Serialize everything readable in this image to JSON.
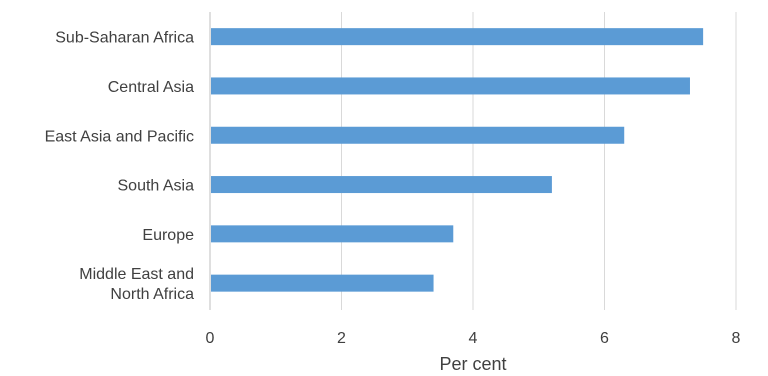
{
  "chart_data": {
    "type": "bar",
    "orientation": "horizontal",
    "categories": [
      "Sub-Saharan Africa",
      "Central Asia",
      "East Asia and Pacific",
      "South Asia",
      "Europe",
      "Middle East and North Africa"
    ],
    "category_label_lines": [
      [
        "Sub-Saharan Africa"
      ],
      [
        "Central Asia"
      ],
      [
        "East Asia and Pacific"
      ],
      [
        "South Asia"
      ],
      [
        "Europe"
      ],
      [
        "Middle East and",
        "North Africa"
      ]
    ],
    "values": [
      7.5,
      7.3,
      6.3,
      5.2,
      3.7,
      3.4
    ],
    "xlabel": "Per cent",
    "ylabel": "",
    "title": "",
    "xlim": [
      0,
      8
    ],
    "xticks": [
      0,
      2,
      4,
      6,
      8
    ],
    "grid": "vertical",
    "legend": "none",
    "bar_color": "#5b9bd5",
    "grid_color": "#d9d9d9",
    "text_color": "#404040"
  }
}
